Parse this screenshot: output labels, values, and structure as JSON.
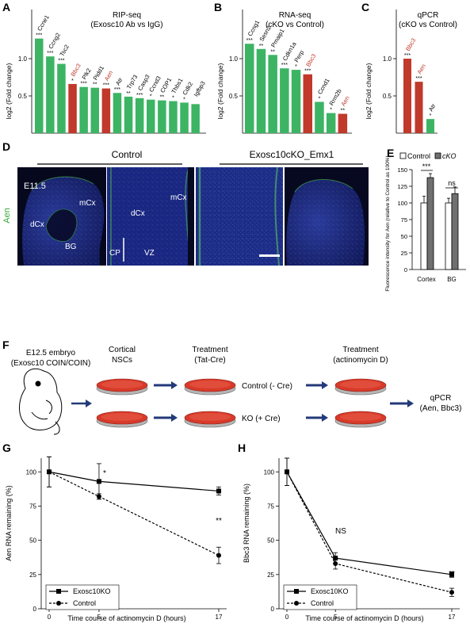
{
  "panels": {
    "A": {
      "letter": "A",
      "title1": "RIP-seq",
      "title2": "(Exosc10 Ab vs IgG)",
      "ylabel": "log2 (Fold change)",
      "yticks": [
        "0.5",
        "1.0"
      ],
      "bars": [
        {
          "label": "Ccne1",
          "value": 1.27,
          "sig": "***",
          "color": "green"
        },
        {
          "label": "Ccng2",
          "value": 1.03,
          "sig": "***",
          "color": "green"
        },
        {
          "label": "Tsc2",
          "value": 0.93,
          "sig": "***",
          "color": "green"
        },
        {
          "label": "Bbc3",
          "value": 0.66,
          "sig": "*",
          "color": "red"
        },
        {
          "label": "Plk2",
          "value": 0.62,
          "sig": "***",
          "color": "green"
        },
        {
          "label": "Pidd1",
          "value": 0.61,
          "sig": "**",
          "color": "green"
        },
        {
          "label": "Aen",
          "value": 0.6,
          "sig": "***",
          "color": "red"
        },
        {
          "label": "Atr",
          "value": 0.54,
          "sig": "***",
          "color": "green"
        },
        {
          "label": "Trp73",
          "value": 0.49,
          "sig": "**",
          "color": "green"
        },
        {
          "label": "Casp3",
          "value": 0.47,
          "sig": "***",
          "color": "green"
        },
        {
          "label": "Ccnd3",
          "value": 0.45,
          "sig": "*",
          "color": "green"
        },
        {
          "label": "COP1",
          "value": 0.44,
          "sig": "**",
          "color": "green"
        },
        {
          "label": "Thbs1",
          "value": 0.43,
          "sig": "*",
          "color": "green"
        },
        {
          "label": "Cdk2",
          "value": 0.41,
          "sig": "*",
          "color": "green"
        },
        {
          "label": "Igfbp3",
          "value": 0.39,
          "sig": "",
          "color": "green"
        }
      ]
    },
    "B": {
      "letter": "B",
      "title1": "RNA-seq",
      "title2": "(cKO vs Control)",
      "ylabel": "log2 (Fold change)",
      "yticks": [
        "0.5",
        "1.0"
      ],
      "bars": [
        {
          "label": "Ccng1",
          "value": 1.2,
          "sig": "***",
          "color": "green"
        },
        {
          "label": "Sesn2",
          "value": 1.13,
          "sig": "**",
          "color": "green"
        },
        {
          "label": "Pmaip1",
          "value": 1.05,
          "sig": "**",
          "color": "green"
        },
        {
          "label": "Cdkn1a",
          "value": 0.87,
          "sig": "***",
          "color": "green"
        },
        {
          "label": "Perp",
          "value": 0.85,
          "sig": "*",
          "color": "green"
        },
        {
          "label": "Bbc3",
          "value": 0.79,
          "sig": "***",
          "color": "red"
        },
        {
          "label": "Ccnd1",
          "value": 0.42,
          "sig": "*",
          "color": "green"
        },
        {
          "label": "Rrm2b",
          "value": 0.27,
          "sig": "*",
          "color": "green"
        },
        {
          "label": "Aen",
          "value": 0.26,
          "sig": "**",
          "color": "red"
        }
      ]
    },
    "C": {
      "letter": "C",
      "title1": "qPCR",
      "title2": "(cKO vs Control)",
      "ylabel": "log2 (Fold change)",
      "yticks": [
        "0.5",
        "1.0"
      ],
      "bars": [
        {
          "label": "Bbc3",
          "value": 1.0,
          "sig": "***",
          "color": "red"
        },
        {
          "label": "Aen",
          "value": 0.69,
          "sig": "***",
          "color": "red"
        },
        {
          "label": "Atr",
          "value": 0.19,
          "sig": "*",
          "color": "green"
        }
      ]
    },
    "D": {
      "letter": "D",
      "control_label": "Control",
      "cko_label": "Exosc10cKO_Emx1",
      "stage": "E11.5",
      "stain": "Aen",
      "regions": {
        "mCx1": "mCx",
        "dCx1": "dCx",
        "BG": "BG",
        "mCx2": "mCx",
        "dCx2": "dCx",
        "CP": "CP",
        "VZ": "VZ"
      }
    },
    "E": {
      "letter": "E",
      "legend_control": "Control",
      "legend_cko": "cKO",
      "ylabel": "Fluorescence intensity for Aen (relative to Control as 100%)",
      "yticks": [
        "0",
        "25",
        "50",
        "75",
        "100",
        "125",
        "150"
      ],
      "groups": [
        "Cortex",
        "BG"
      ],
      "sig": [
        "***",
        "ns"
      ]
    },
    "F": {
      "letter": "F",
      "embryo_line1": "E12.5 embryo",
      "embryo_line2": "(Exosc10 COIN/COIN)",
      "step1_line1": "Cortical",
      "step1_line2": "NSCs",
      "step2_line1": "Treatment",
      "step2_line2": "(Tat-Cre)",
      "step3_line1": "Treatment",
      "step3_line2": "(actinomycin D)",
      "control_row": "Control (- Cre)",
      "ko_row": "KO (+ Cre)",
      "readout_line1": "qPCR",
      "readout_line2": "(Aen, Bbc3)"
    },
    "G": {
      "letter": "G",
      "ylabel": "Aen RNA remaining (%)",
      "xlabel": "Time course of actinomycin D (hours)",
      "legend_ko": "Exosc10KO",
      "legend_control": "Control",
      "sig_5": "*",
      "sig_17": "**"
    },
    "H": {
      "letter": "H",
      "ylabel": "Bbc3 RNA remaining (%)",
      "xlabel": "Time course of actinomycin D (hours)",
      "legend_ko": "Exosc10KO",
      "legend_control": "Control",
      "sig_5": "NS",
      "sig_17": "**"
    }
  },
  "colors": {
    "green": "#3cb464",
    "red": "#c0392b",
    "nuclei": "#1e2f8c",
    "stain": "#4caf50"
  },
  "chart_data": [
    {
      "type": "bar",
      "title": "RIP-seq (Exosc10 Ab vs IgG)",
      "ylabel": "log2 (Fold change)",
      "categories": [
        "Ccne1",
        "Ccng2",
        "Tsc2",
        "Bbc3",
        "Plk2",
        "Pidd1",
        "Aen",
        "Atr",
        "Trp73",
        "Casp3",
        "Ccnd3",
        "COP1",
        "Thbs1",
        "Cdk2",
        "Igfbp3"
      ],
      "values": [
        1.27,
        1.03,
        0.93,
        0.66,
        0.62,
        0.61,
        0.6,
        0.54,
        0.49,
        0.47,
        0.45,
        0.44,
        0.43,
        0.41,
        0.39
      ],
      "ylim": [
        0,
        1.35
      ]
    },
    {
      "type": "bar",
      "title": "RNA-seq (cKO vs Control)",
      "ylabel": "log2 (Fold change)",
      "categories": [
        "Ccng1",
        "Sesn2",
        "Pmaip1",
        "Cdkn1a",
        "Perp",
        "Bbc3",
        "Ccnd1",
        "Rrm2b",
        "Aen"
      ],
      "values": [
        1.2,
        1.13,
        1.05,
        0.87,
        0.85,
        0.79,
        0.42,
        0.27,
        0.26
      ],
      "ylim": [
        0,
        1.35
      ]
    },
    {
      "type": "bar",
      "title": "qPCR (cKO vs Control)",
      "ylabel": "log2 (Fold change)",
      "categories": [
        "Bbc3",
        "Aen",
        "Atr"
      ],
      "values": [
        1.0,
        0.69,
        0.19
      ],
      "ylim": [
        0,
        1.35
      ]
    },
    {
      "type": "bar",
      "ylabel": "Fluorescence intensity for Aen (relative to Control as 100%)",
      "categories": [
        "Cortex",
        "BG"
      ],
      "series": [
        {
          "name": "Control",
          "values": [
            100,
            100
          ],
          "errors": [
            10,
            7
          ]
        },
        {
          "name": "cKO",
          "values": [
            138,
            114
          ],
          "errors": [
            6,
            10
          ]
        }
      ],
      "ylim": [
        0,
        150
      ]
    },
    {
      "type": "line",
      "ylabel": "Aen RNA remaining (%)",
      "xlabel": "Time course of actinomycin D (hours)",
      "x": [
        0,
        5,
        17
      ],
      "series": [
        {
          "name": "Exosc10KO",
          "values": [
            100,
            93,
            86
          ],
          "errors": [
            11,
            13,
            3
          ]
        },
        {
          "name": "Control",
          "values": [
            100,
            82,
            39
          ],
          "errors": [
            11,
            2,
            6
          ]
        }
      ],
      "ylim": [
        0,
        110
      ]
    },
    {
      "type": "line",
      "ylabel": "Bbc3 RNA remaining (%)",
      "xlabel": "Time course of actinomycin D (hours)",
      "x": [
        0,
        5,
        17
      ],
      "series": [
        {
          "name": "Exosc10KO",
          "values": [
            100,
            37,
            25
          ],
          "errors": [
            10,
            4,
            2
          ]
        },
        {
          "name": "Control",
          "values": [
            100,
            33,
            12
          ],
          "errors": [
            10,
            4,
            3
          ]
        }
      ],
      "ylim": [
        0,
        110
      ]
    }
  ]
}
